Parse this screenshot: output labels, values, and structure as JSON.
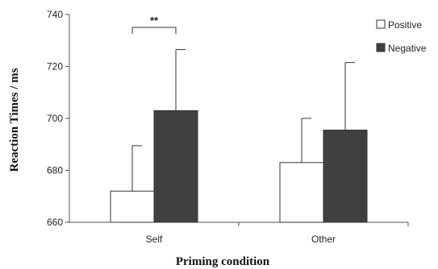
{
  "chart_data": {
    "type": "bar",
    "title": "",
    "xlabel": "Priming  condition",
    "ylabel": "Reaction Times / ms",
    "categories": [
      "Self",
      "Other"
    ],
    "ylim": [
      660,
      740
    ],
    "yticks": [
      660,
      680,
      700,
      720,
      740
    ],
    "grid": false,
    "legend_position": "top-right",
    "series": [
      {
        "name": "Positive",
        "values": [
          672,
          683
        ],
        "error_upper": [
          17.5,
          17
        ],
        "color": "#ffffff"
      },
      {
        "name": "Negative",
        "values": [
          703,
          695.5
        ],
        "error_upper": [
          23.5,
          26
        ],
        "color": "#404040"
      }
    ],
    "annotations": [
      {
        "text": "**",
        "category": "Self",
        "between": [
          "Positive",
          "Negative"
        ]
      }
    ]
  }
}
